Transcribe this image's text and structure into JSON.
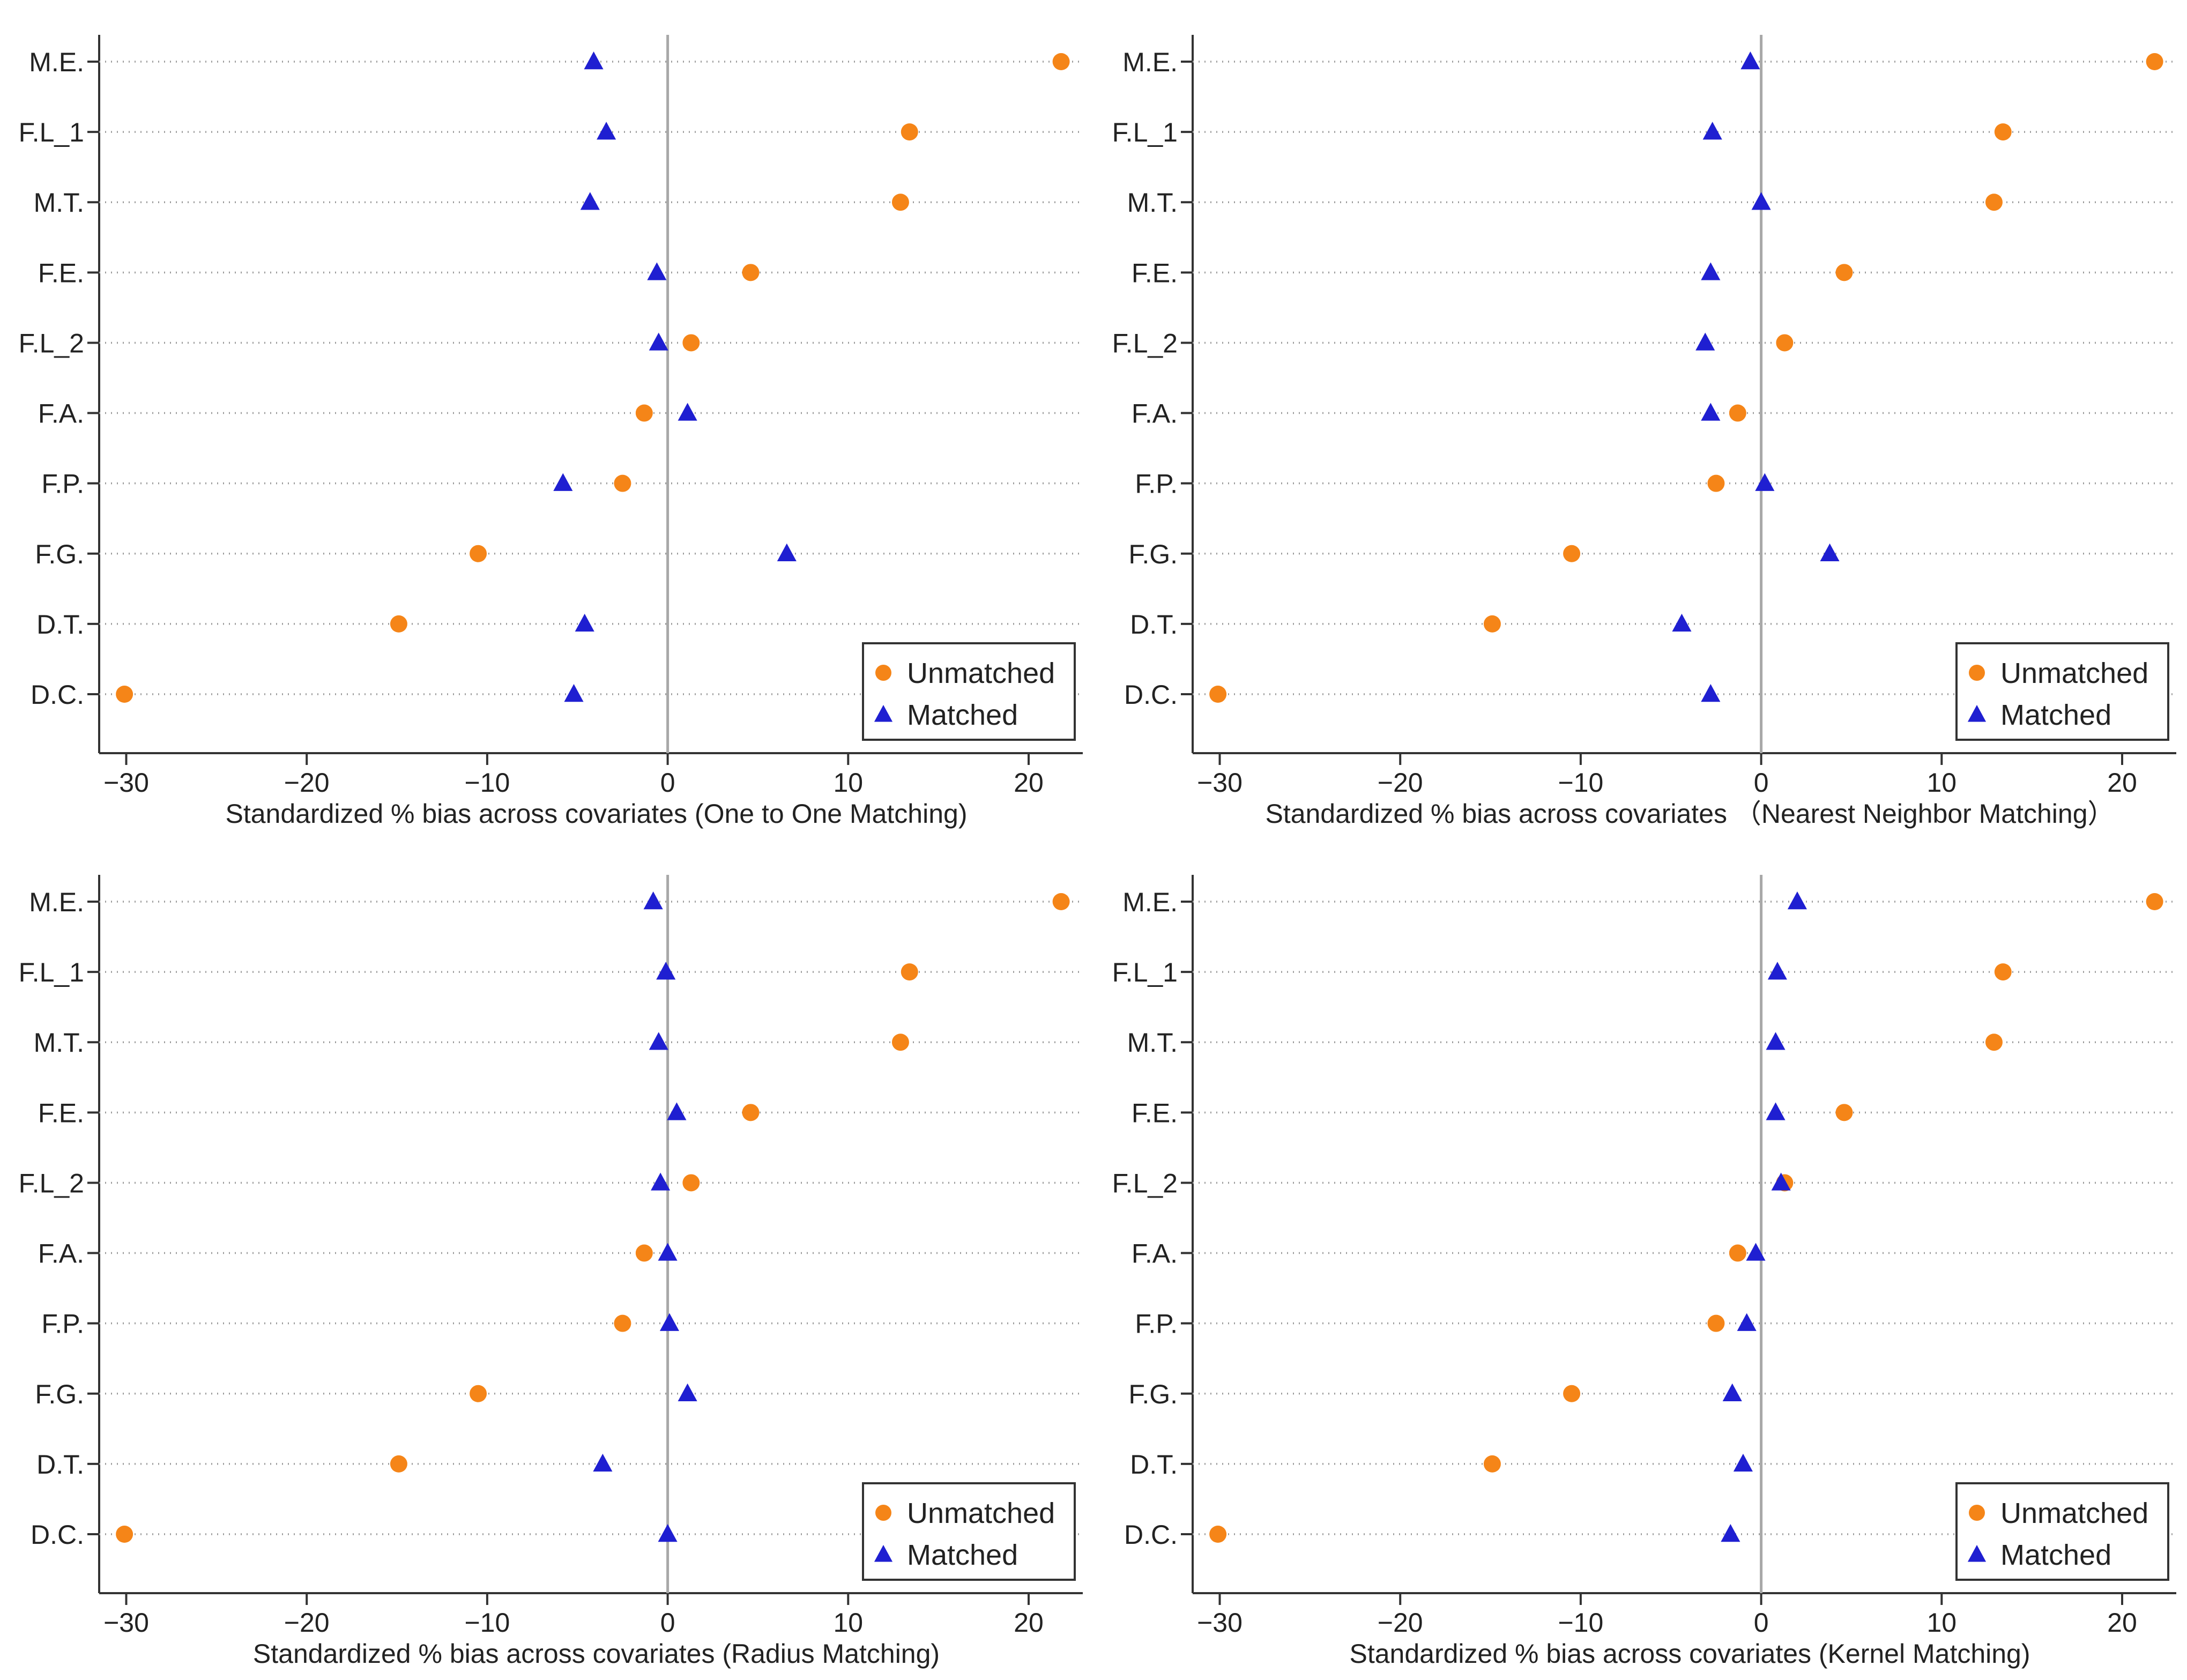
{
  "chart_data": [
    {
      "type": "scatter",
      "title": "",
      "xlabel": "Standardized % bias across covariates (One to One Matching)",
      "ylabel": "",
      "xlim": [
        -31.5,
        23
      ],
      "xticks": [
        -30,
        -20,
        -10,
        0,
        10,
        20
      ],
      "xtick_labels": [
        "−30",
        "−20",
        "−10",
        "0",
        "10",
        "20"
      ],
      "grid": "horizontal dotted",
      "legend": "bottom-right",
      "categories": [
        "M.E.",
        "F.L_1",
        "M.T.",
        "F.E.",
        "F.L_2",
        "F.A.",
        "F.P.",
        "F.G.",
        "D.T.",
        "D.C."
      ],
      "series": [
        {
          "name": "Unmatched",
          "marker": "circle",
          "color": "#f58518",
          "values": [
            21.8,
            13.4,
            12.9,
            4.6,
            1.3,
            -1.3,
            -2.5,
            -10.5,
            -14.9,
            -30.1
          ]
        },
        {
          "name": "Matched",
          "marker": "triangle",
          "color": "#1f1fd1",
          "values": [
            -4.1,
            -3.4,
            -4.3,
            -0.6,
            -0.5,
            1.1,
            -5.8,
            6.6,
            -4.6,
            -5.2
          ]
        }
      ]
    },
    {
      "type": "scatter",
      "title": "",
      "xlabel": "Standardized % bias across covariates （Nearest Neighbor Matching）",
      "ylabel": "",
      "xlim": [
        -31.5,
        23
      ],
      "xticks": [
        -30,
        -20,
        -10,
        0,
        10,
        20
      ],
      "xtick_labels": [
        "−30",
        "−20",
        "−10",
        "0",
        "10",
        "20"
      ],
      "grid": "horizontal dotted",
      "legend": "bottom-right",
      "categories": [
        "M.E.",
        "F.L_1",
        "M.T.",
        "F.E.",
        "F.L_2",
        "F.A.",
        "F.P.",
        "F.G.",
        "D.T.",
        "D.C."
      ],
      "series": [
        {
          "name": "Unmatched",
          "marker": "circle",
          "color": "#f58518",
          "values": [
            21.8,
            13.4,
            12.9,
            4.6,
            1.3,
            -1.3,
            -2.5,
            -10.5,
            -14.9,
            -30.1
          ]
        },
        {
          "name": "Matched",
          "marker": "triangle",
          "color": "#1f1fd1",
          "values": [
            -0.6,
            -2.7,
            0.0,
            -2.8,
            -3.1,
            -2.8,
            0.2,
            3.8,
            -4.4,
            -2.8
          ]
        }
      ]
    },
    {
      "type": "scatter",
      "title": "",
      "xlabel": "Standardized % bias across covariates (Radius Matching)",
      "ylabel": "",
      "xlim": [
        -31.5,
        23
      ],
      "xticks": [
        -30,
        -20,
        -10,
        0,
        10,
        20
      ],
      "xtick_labels": [
        "−30",
        "−20",
        "−10",
        "0",
        "10",
        "20"
      ],
      "grid": "horizontal dotted",
      "legend": "bottom-right",
      "categories": [
        "M.E.",
        "F.L_1",
        "M.T.",
        "F.E.",
        "F.L_2",
        "F.A.",
        "F.P.",
        "F.G.",
        "D.T.",
        "D.C."
      ],
      "series": [
        {
          "name": "Unmatched",
          "marker": "circle",
          "color": "#f58518",
          "values": [
            21.8,
            13.4,
            12.9,
            4.6,
            1.3,
            -1.3,
            -2.5,
            -10.5,
            -14.9,
            -30.1
          ]
        },
        {
          "name": "Matched",
          "marker": "triangle",
          "color": "#1f1fd1",
          "values": [
            -0.8,
            -0.1,
            -0.5,
            0.5,
            -0.4,
            0.0,
            0.1,
            1.1,
            -3.6,
            0.0
          ]
        }
      ]
    },
    {
      "type": "scatter",
      "title": "",
      "xlabel": "Standardized % bias across covariates (Kernel Matching)",
      "ylabel": "",
      "xlim": [
        -31.5,
        23
      ],
      "xticks": [
        -30,
        -20,
        -10,
        0,
        10,
        20
      ],
      "xtick_labels": [
        "−30",
        "−20",
        "−10",
        "0",
        "10",
        "20"
      ],
      "grid": "horizontal dotted",
      "legend": "bottom-right",
      "categories": [
        "M.E.",
        "F.L_1",
        "M.T.",
        "F.E.",
        "F.L_2",
        "F.A.",
        "F.P.",
        "F.G.",
        "D.T.",
        "D.C."
      ],
      "series": [
        {
          "name": "Unmatched",
          "marker": "circle",
          "color": "#f58518",
          "values": [
            21.8,
            13.4,
            12.9,
            4.6,
            1.3,
            -1.3,
            -2.5,
            -10.5,
            -14.9,
            -30.1
          ]
        },
        {
          "name": "Matched",
          "marker": "triangle",
          "color": "#1f1fd1",
          "values": [
            2.0,
            0.9,
            0.8,
            0.8,
            1.1,
            -0.3,
            -0.8,
            -1.6,
            -1.0,
            -1.7
          ]
        }
      ]
    }
  ]
}
